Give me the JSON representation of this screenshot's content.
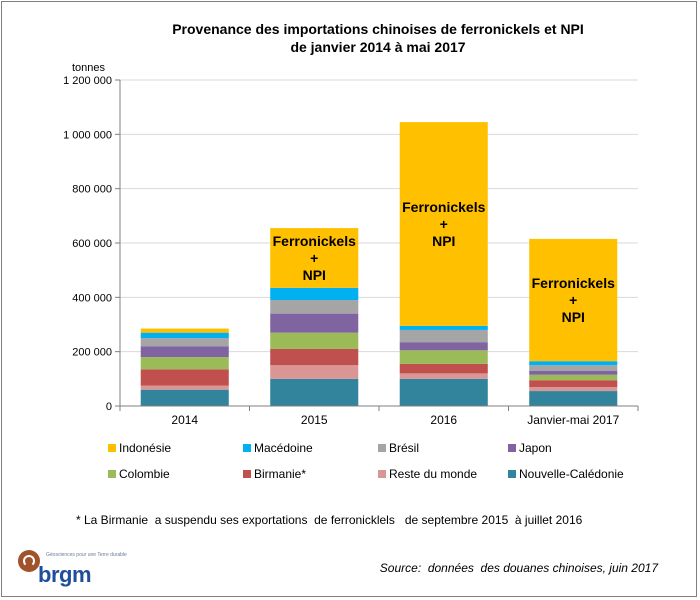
{
  "chart_data": {
    "type": "bar",
    "stacked": true,
    "title": "Provenance des importations chinoises de ferronickels et NPI",
    "subtitle": "de janvier 2014 à mai 2017",
    "ylabel": "tonnes",
    "ylim": [
      0,
      1200000
    ],
    "yticks": [
      0,
      200000,
      400000,
      600000,
      800000,
      1000000,
      1200000
    ],
    "ytick_labels": [
      "0",
      "200 000",
      "400 000",
      "600 000",
      "800 000",
      "1 000 000",
      "1 200 000"
    ],
    "grid": true,
    "legend_position": "bottom",
    "categories": [
      "2014",
      "2015",
      "2016",
      "Janvier-mai 2017"
    ],
    "series": [
      {
        "name": "Nouvelle-Calédonie",
        "color": "#31849b",
        "values": [
          60000,
          100000,
          100000,
          55000
        ]
      },
      {
        "name": "Reste du monde",
        "color": "#d99694",
        "values": [
          15000,
          50000,
          20000,
          15000
        ]
      },
      {
        "name": "Birmanie*",
        "color": "#c0504d",
        "values": [
          60000,
          60000,
          35000,
          25000
        ]
      },
      {
        "name": "Colombie",
        "color": "#9bbb59",
        "values": [
          45000,
          60000,
          50000,
          20000
        ]
      },
      {
        "name": "Japon",
        "color": "#8064a2",
        "values": [
          40000,
          70000,
          30000,
          15000
        ]
      },
      {
        "name": "Brésil",
        "color": "#a5a5a5",
        "values": [
          30000,
          50000,
          45000,
          20000
        ]
      },
      {
        "name": "Macédoine",
        "color": "#00b0f0",
        "values": [
          20000,
          45000,
          15000,
          15000
        ]
      },
      {
        "name": "Indonésie",
        "color": "#ffc000",
        "values": [
          15000,
          220000,
          750000,
          450000
        ]
      }
    ],
    "annotations": [
      {
        "category": "2015",
        "lines": [
          "Ferronickels",
          "+",
          "NPI"
        ]
      },
      {
        "category": "2016",
        "lines": [
          "Ferronickels",
          "+",
          "NPI"
        ]
      },
      {
        "category": "Janvier-mai 2017",
        "lines": [
          "Ferronickels",
          "+",
          "NPI"
        ]
      }
    ],
    "legend_order": [
      "Indonésie",
      "Macédoine",
      "Brésil",
      "Japon",
      "Colombie",
      "Birmanie*",
      "Reste du monde",
      "Nouvelle-Calédonie"
    ]
  },
  "footnote": "* La Birmanie  a suspendu ses exportations  de ferronicklels   de septembre 2015  à juillet 2016",
  "source": "Source:  données  des douanes chinoises, juin 2017",
  "logo": {
    "word": "brgm",
    "tagline": "Géosciences pour une Terre durable",
    "icon": "brgm-logo-icon"
  }
}
